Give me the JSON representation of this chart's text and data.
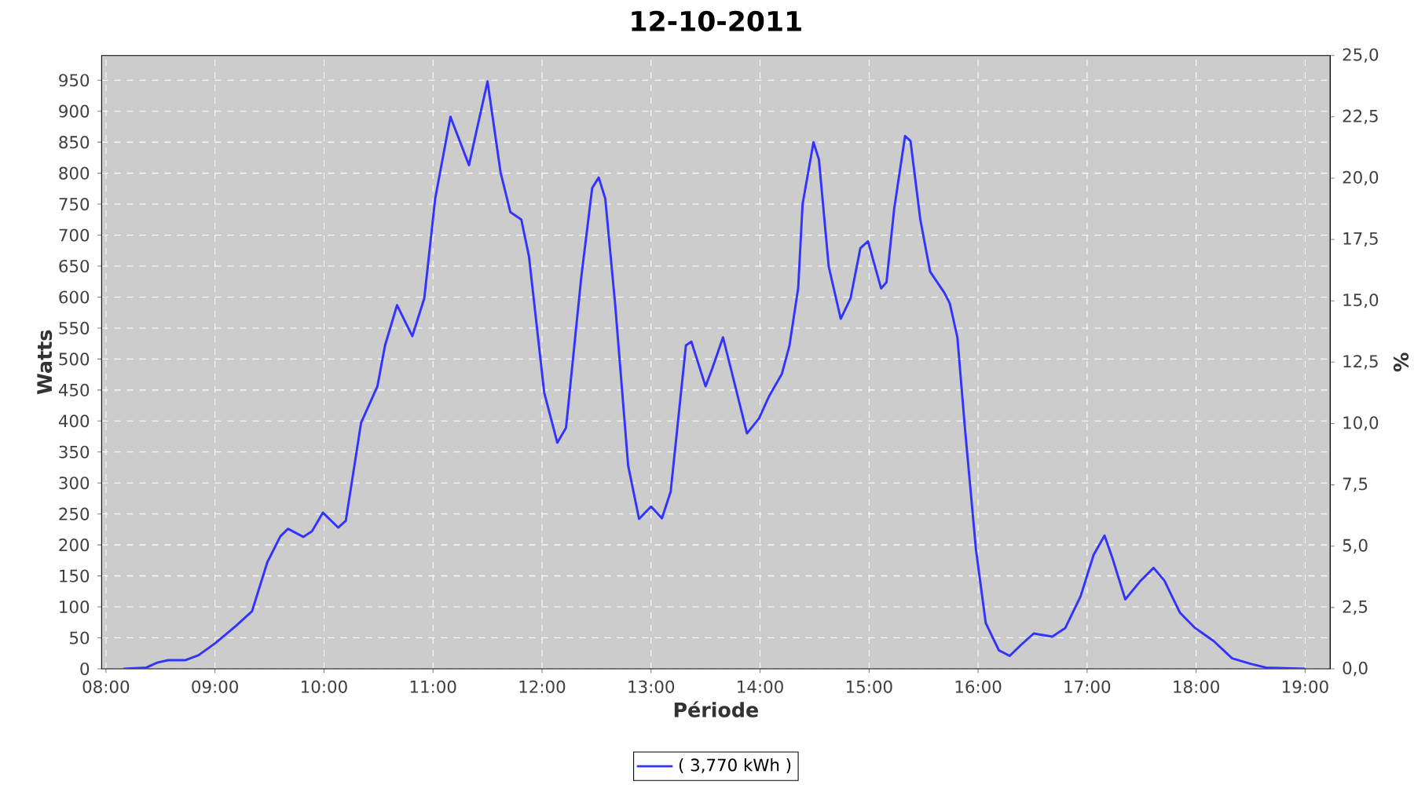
{
  "chart_data": {
    "type": "line",
    "title": "12-10-2011",
    "xlabel": "Période",
    "ylabel": "Watts",
    "y2label": "%",
    "xlim": [
      7.96,
      19.23
    ],
    "ylim": [
      0,
      990
    ],
    "y2lim": [
      0,
      25
    ],
    "xticks": [
      {
        "value": 8,
        "label": "08:00"
      },
      {
        "value": 9,
        "label": "09:00"
      },
      {
        "value": 10,
        "label": "10:00"
      },
      {
        "value": 11,
        "label": "11:00"
      },
      {
        "value": 12,
        "label": "12:00"
      },
      {
        "value": 13,
        "label": "13:00"
      },
      {
        "value": 14,
        "label": "14:00"
      },
      {
        "value": 15,
        "label": "15:00"
      },
      {
        "value": 16,
        "label": "16:00"
      },
      {
        "value": 17,
        "label": "17:00"
      },
      {
        "value": 18,
        "label": "18:00"
      },
      {
        "value": 19,
        "label": "19:00"
      }
    ],
    "yticks": [
      0,
      50,
      100,
      150,
      200,
      250,
      300,
      350,
      400,
      450,
      500,
      550,
      600,
      650,
      700,
      750,
      800,
      850,
      900,
      950
    ],
    "y2ticks": [
      {
        "value": 0,
        "label": "0,0"
      },
      {
        "value": 2.5,
        "label": "2,5"
      },
      {
        "value": 5,
        "label": "5,0"
      },
      {
        "value": 7.5,
        "label": "7,5"
      },
      {
        "value": 10,
        "label": "10,0"
      },
      {
        "value": 12.5,
        "label": "12,5"
      },
      {
        "value": 15,
        "label": "15,0"
      },
      {
        "value": 17.5,
        "label": "17,5"
      },
      {
        "value": 20,
        "label": "20,0"
      },
      {
        "value": 22.5,
        "label": "22,5"
      },
      {
        "value": 25,
        "label": "25,0"
      }
    ],
    "grid": true,
    "legend": "bottom",
    "marker": "none",
    "line_style": "solid",
    "series": [
      {
        "name": "( 3,770 kWh )",
        "color": "#3333ff",
        "x": [
          8.16,
          8.37,
          8.47,
          8.57,
          8.73,
          8.85,
          9.0,
          9.19,
          9.34,
          9.48,
          9.6,
          9.67,
          9.81,
          9.89,
          9.99,
          10.13,
          10.2,
          10.34,
          10.49,
          10.56,
          10.67,
          10.81,
          10.92,
          11.02,
          11.16,
          11.33,
          11.4,
          11.5,
          11.62,
          11.71,
          11.81,
          11.88,
          12.02,
          12.14,
          12.22,
          12.36,
          12.46,
          12.52,
          12.58,
          12.67,
          12.79,
          12.89,
          13.0,
          13.1,
          13.18,
          13.32,
          13.37,
          13.5,
          13.56,
          13.66,
          13.75,
          13.88,
          13.99,
          14.08,
          14.2,
          14.27,
          14.35,
          14.39,
          14.49,
          14.54,
          14.63,
          14.74,
          14.83,
          14.92,
          14.99,
          15.11,
          15.16,
          15.23,
          15.33,
          15.38,
          15.47,
          15.56,
          15.69,
          15.74,
          15.81,
          15.88,
          15.98,
          16.07,
          16.19,
          16.29,
          16.39,
          16.51,
          16.68,
          16.8,
          16.94,
          17.06,
          17.16,
          17.23,
          17.35,
          17.49,
          17.61,
          17.71,
          17.85,
          17.99,
          18.16,
          18.33,
          18.5,
          18.64,
          19.0
        ],
        "values": [
          0,
          2,
          10,
          14,
          14,
          22,
          41,
          69,
          93,
          172,
          214,
          226,
          213,
          222,
          252,
          228,
          239,
          397,
          456,
          522,
          587,
          537,
          598,
          759,
          891,
          813,
          869,
          948,
          801,
          737,
          725,
          666,
          446,
          365,
          389,
          632,
          776,
          793,
          759,
          590,
          328,
          242,
          262,
          243,
          286,
          522,
          528,
          456,
          484,
          535,
          472,
          380,
          404,
          439,
          476,
          522,
          615,
          750,
          850,
          822,
          649,
          565,
          598,
          679,
          690,
          614,
          624,
          742,
          860,
          852,
          725,
          641,
          607,
          590,
          535,
          387,
          193,
          74,
          30,
          21,
          38,
          57,
          52,
          66,
          117,
          184,
          215,
          180,
          112,
          142,
          163,
          142,
          91,
          66,
          45,
          17,
          8,
          2,
          0
        ]
      }
    ]
  }
}
